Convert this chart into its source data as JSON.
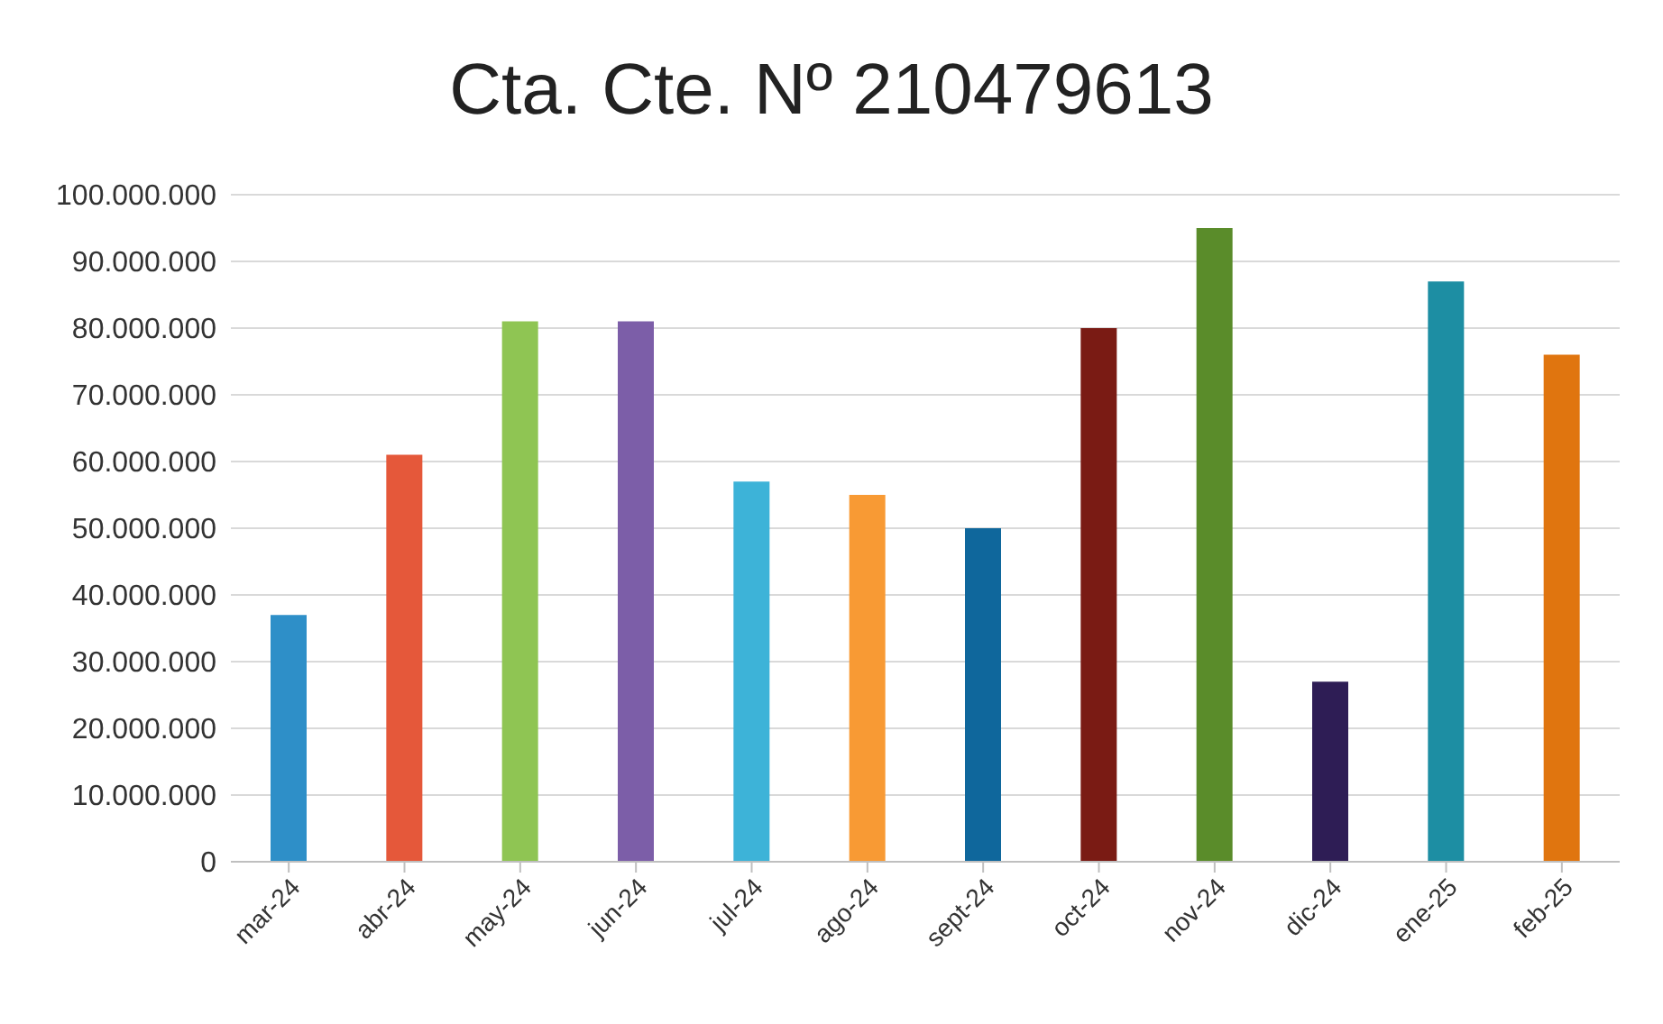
{
  "chart_data": {
    "type": "bar",
    "title": "Cta. Cte. Nº 210479613",
    "categories": [
      "mar-24",
      "abr-24",
      "may-24",
      "jun-24",
      "jul-24",
      "ago-24",
      "sept-24",
      "oct-24",
      "nov-24",
      "dic-24",
      "ene-25",
      "feb-25"
    ],
    "values": [
      37000000,
      61000000,
      81000000,
      81000000,
      57000000,
      55000000,
      50000000,
      80000000,
      95000000,
      27000000,
      87000000,
      76000000
    ],
    "colors": [
      "#2e8fc8",
      "#e5583a",
      "#8fc553",
      "#7c5ea8",
      "#3db3d8",
      "#f89a34",
      "#0f679c",
      "#7a1b14",
      "#5a8c2a",
      "#2e1d55",
      "#1d8ea3",
      "#e0750f"
    ],
    "ylim": [
      0,
      100000000
    ],
    "yticks": [
      {
        "value": 0,
        "label": "0"
      },
      {
        "value": 10000000,
        "label": "10.000.000"
      },
      {
        "value": 20000000,
        "label": "20.000.000"
      },
      {
        "value": 30000000,
        "label": "30.000.000"
      },
      {
        "value": 40000000,
        "label": "40.000.000"
      },
      {
        "value": 50000000,
        "label": "50.000.000"
      },
      {
        "value": 60000000,
        "label": "60.000.000"
      },
      {
        "value": 70000000,
        "label": "70.000.000"
      },
      {
        "value": 80000000,
        "label": "80.000.000"
      },
      {
        "value": 90000000,
        "label": "90.000.000"
      },
      {
        "value": 100000000,
        "label": "100.000.000"
      }
    ],
    "grid": "y"
  }
}
